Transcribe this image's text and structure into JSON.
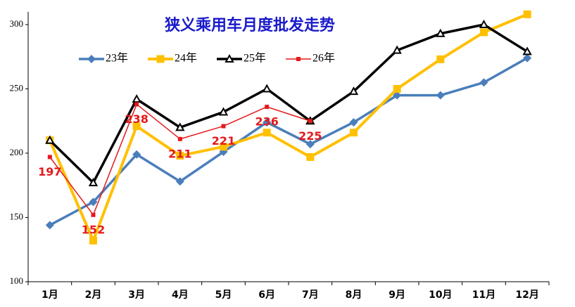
{
  "chart_data": {
    "type": "line",
    "title": "狭义乘用车月度批发走势",
    "categories": [
      "1月",
      "2月",
      "3月",
      "4月",
      "5月",
      "6月",
      "7月",
      "8月",
      "9月",
      "10月",
      "11月",
      "12月"
    ],
    "ylim": [
      100,
      310
    ],
    "yticks": [
      100,
      150,
      200,
      250,
      300
    ],
    "grid": false,
    "series": [
      {
        "name": "23年",
        "color": "#4a7ebb",
        "marker": "diamond",
        "values": [
          144,
          162,
          199,
          178,
          201,
          224,
          207,
          224,
          245,
          245,
          255,
          274
        ]
      },
      {
        "name": "24年",
        "color": "#ffc000",
        "marker": "square",
        "values": [
          210,
          132,
          221,
          198,
          205,
          216,
          197,
          216,
          250,
          273,
          294,
          308
        ]
      },
      {
        "name": "25年",
        "color": "#000000",
        "marker": "triangle",
        "values": [
          210,
          177,
          242,
          220,
          232,
          250,
          225,
          248,
          280,
          293,
          300,
          279
        ]
      },
      {
        "name": "26年",
        "color": "#e31a1c",
        "marker": "small-square",
        "data_labels": true,
        "values": [
          197,
          152,
          238,
          211,
          221,
          236,
          225,
          null,
          null,
          null,
          null,
          null
        ]
      }
    ]
  }
}
